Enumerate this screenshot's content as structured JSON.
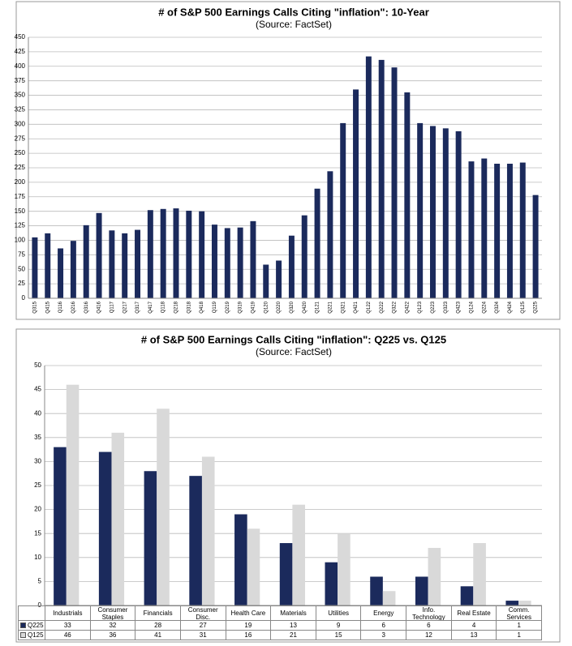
{
  "chart_data": [
    {
      "type": "bar",
      "title": "# of S&P 500 Earnings Calls Citing \"inflation\": 10-Year",
      "subtitle": "(Source: FactSet)",
      "categories": [
        "Q315",
        "Q415",
        "Q116",
        "Q216",
        "Q316",
        "Q416",
        "Q117",
        "Q217",
        "Q317",
        "Q417",
        "Q118",
        "Q218",
        "Q318",
        "Q418",
        "Q119",
        "Q219",
        "Q319",
        "Q419",
        "Q120",
        "Q220",
        "Q320",
        "Q420",
        "Q121",
        "Q221",
        "Q321",
        "Q421",
        "Q122",
        "Q222",
        "Q322",
        "Q422",
        "Q123",
        "Q223",
        "Q323",
        "Q423",
        "Q124",
        "Q224",
        "Q324",
        "Q424",
        "Q125",
        "Q225"
      ],
      "values": [
        105,
        112,
        86,
        99,
        126,
        147,
        117,
        112,
        118,
        152,
        154,
        155,
        151,
        150,
        127,
        121,
        122,
        133,
        58,
        65,
        108,
        143,
        189,
        219,
        302,
        360,
        417,
        411,
        398,
        355,
        302,
        297,
        293,
        288,
        236,
        241,
        232,
        232,
        234,
        178
      ],
      "color": "#1b2a5c",
      "ylim": [
        0,
        450
      ],
      "yticks": [
        0,
        25,
        50,
        75,
        100,
        125,
        150,
        175,
        200,
        225,
        250,
        275,
        300,
        325,
        350,
        375,
        400,
        425,
        450
      ],
      "grid": true
    },
    {
      "type": "grouped_bar",
      "title": "# of S&P 500 Earnings Calls Citing \"inflation\": Q225 vs. Q125",
      "subtitle": "(Source: FactSet)",
      "categories": [
        "Industrials",
        "Consumer Staples",
        "Financials",
        "Consumer Disc.",
        "Health Care",
        "Materials",
        "Utilities",
        "Energy",
        "Info. Technology",
        "Real Estate",
        "Comm. Services"
      ],
      "series": [
        {
          "name": "Q225",
          "color": "#1b2a5c",
          "values": [
            33,
            32,
            28,
            27,
            19,
            13,
            9,
            6,
            6,
            4,
            1
          ]
        },
        {
          "name": "Q125",
          "color": "#d9d9d9",
          "values": [
            46,
            36,
            41,
            31,
            16,
            21,
            15,
            3,
            12,
            13,
            1
          ]
        }
      ],
      "ylim": [
        0,
        50
      ],
      "yticks": [
        0,
        5,
        10,
        15,
        20,
        25,
        30,
        35,
        40,
        45,
        50
      ],
      "grid": true,
      "data_table": true
    }
  ]
}
